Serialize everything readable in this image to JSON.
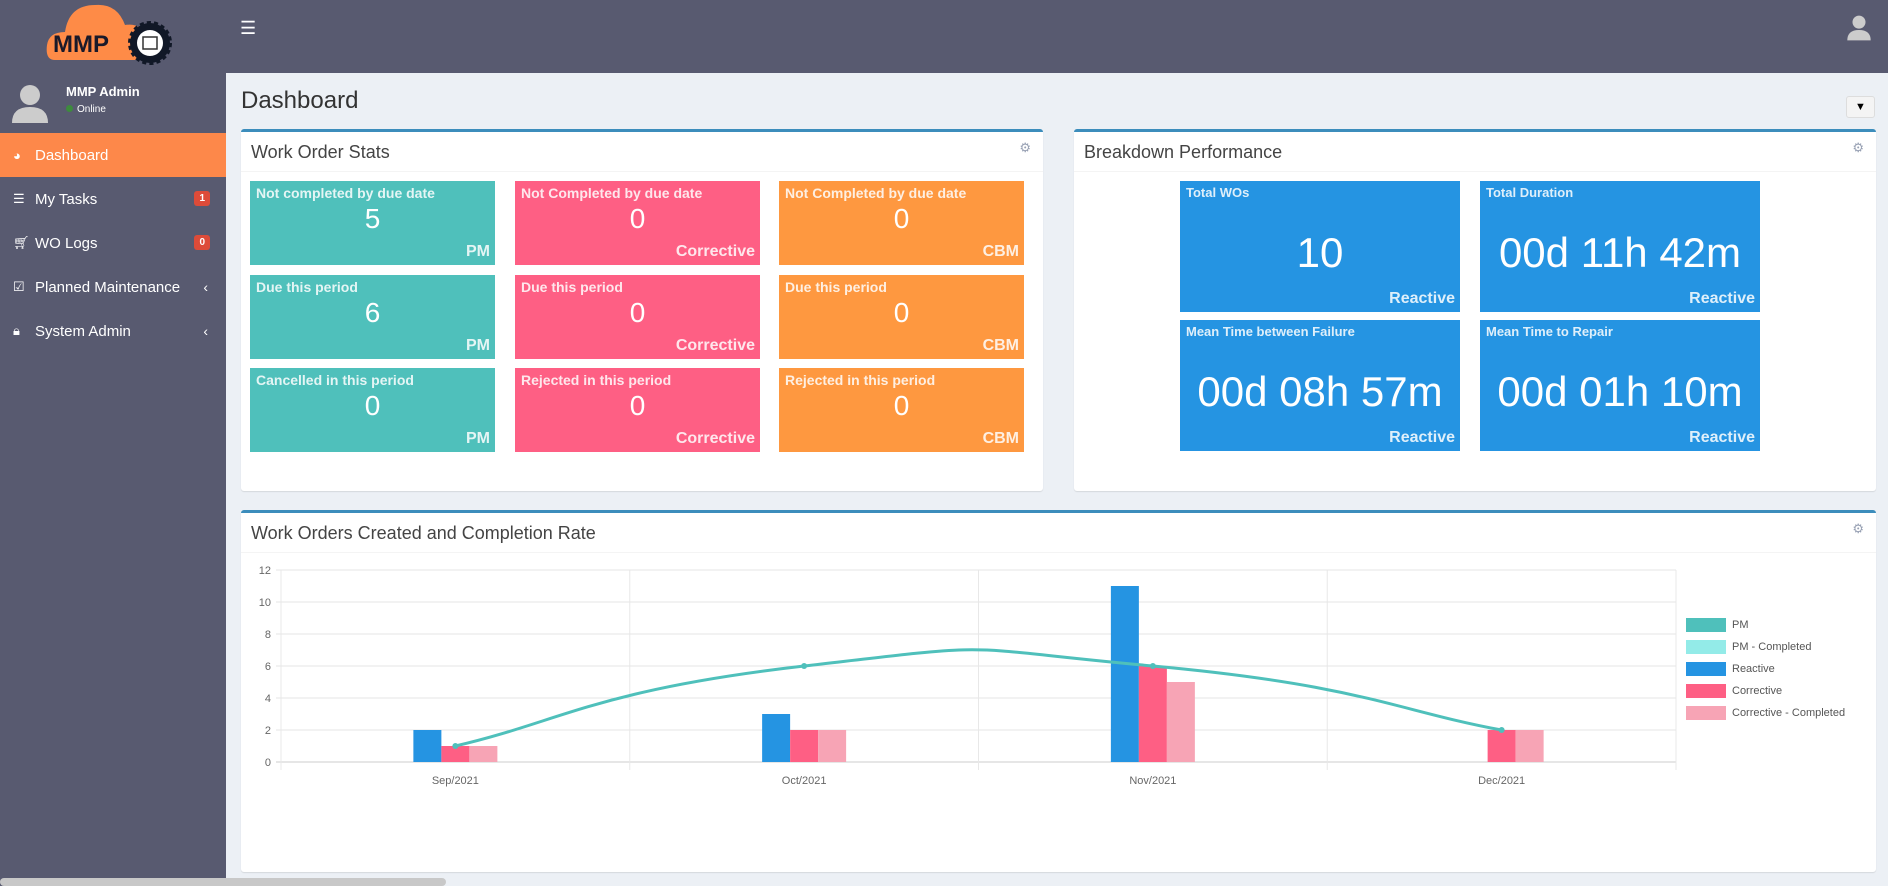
{
  "app": {
    "logo_text": "MMP"
  },
  "user": {
    "name": "MMP Admin",
    "status": "Online"
  },
  "sidebar": {
    "items": [
      {
        "label": "Dashboard",
        "icon": "dashboard-icon",
        "active": true
      },
      {
        "label": "My Tasks",
        "icon": "tasks-icon",
        "badge": "1"
      },
      {
        "label": "WO Logs",
        "icon": "cart-icon",
        "badge": "0"
      },
      {
        "label": "Planned Maintenance",
        "icon": "calendar-check-icon",
        "expandable": true
      },
      {
        "label": "System Admin",
        "icon": "lock-icon",
        "expandable": true
      }
    ]
  },
  "page": {
    "title": "Dashboard"
  },
  "wo_stats": {
    "title": "Work Order Stats",
    "cards": [
      {
        "title": "Not completed by due date",
        "value": "5",
        "type": "PM",
        "color": "teal"
      },
      {
        "title": "Not Completed by due date",
        "value": "0",
        "type": "Corrective",
        "color": "pink"
      },
      {
        "title": "Not Completed by due date",
        "value": "0",
        "type": "CBM",
        "color": "orange"
      },
      {
        "title": "Due this period",
        "value": "6",
        "type": "PM",
        "color": "teal"
      },
      {
        "title": "Due this period",
        "value": "0",
        "type": "Corrective",
        "color": "pink"
      },
      {
        "title": "Due this period",
        "value": "0",
        "type": "CBM",
        "color": "orange"
      },
      {
        "title": "Cancelled in this period",
        "value": "0",
        "type": "PM",
        "color": "teal"
      },
      {
        "title": "Rejected in this period",
        "value": "0",
        "type": "Corrective",
        "color": "pink"
      },
      {
        "title": "Rejected in this period",
        "value": "0",
        "type": "CBM",
        "color": "orange"
      }
    ]
  },
  "breakdown": {
    "title": "Breakdown Performance",
    "cards": [
      {
        "title": "Total WOs",
        "value": "10",
        "type": "Reactive"
      },
      {
        "title": "Total Duration",
        "value": "00d 11h 42m",
        "type": "Reactive"
      },
      {
        "title": "Mean Time between Failure",
        "value": "00d 08h 57m",
        "type": "Reactive"
      },
      {
        "title": "Mean Time to Repair",
        "value": "00d 01h 10m",
        "type": "Reactive"
      }
    ]
  },
  "chart_box": {
    "title": "Work Orders Created and Completion Rate"
  },
  "chart_data": {
    "type": "bar",
    "categories": [
      "Sep/2021",
      "Oct/2021",
      "Nov/2021",
      "Dec/2021"
    ],
    "ylim": [
      0,
      12
    ],
    "yticks": [
      0,
      2,
      4,
      6,
      8,
      10,
      12
    ],
    "grid": true,
    "legend_position": "right",
    "series": [
      {
        "name": "PM",
        "type": "line",
        "color": "#4fc0bb",
        "values": [
          1,
          6,
          6,
          2
        ]
      },
      {
        "name": "PM - Completed",
        "type": "bar",
        "color": "#93ebe8",
        "values": [
          0,
          0,
          0,
          0
        ]
      },
      {
        "name": "Reactive",
        "type": "bar",
        "color": "#2594e2",
        "values": [
          2,
          3,
          11,
          0
        ]
      },
      {
        "name": "Corrective",
        "type": "bar",
        "color": "#fe5f84",
        "values": [
          1,
          2,
          6,
          2
        ]
      },
      {
        "name": "Corrective - Completed",
        "type": "bar",
        "color": "#f7a4b5",
        "values": [
          1,
          2,
          5,
          2
        ]
      }
    ]
  }
}
